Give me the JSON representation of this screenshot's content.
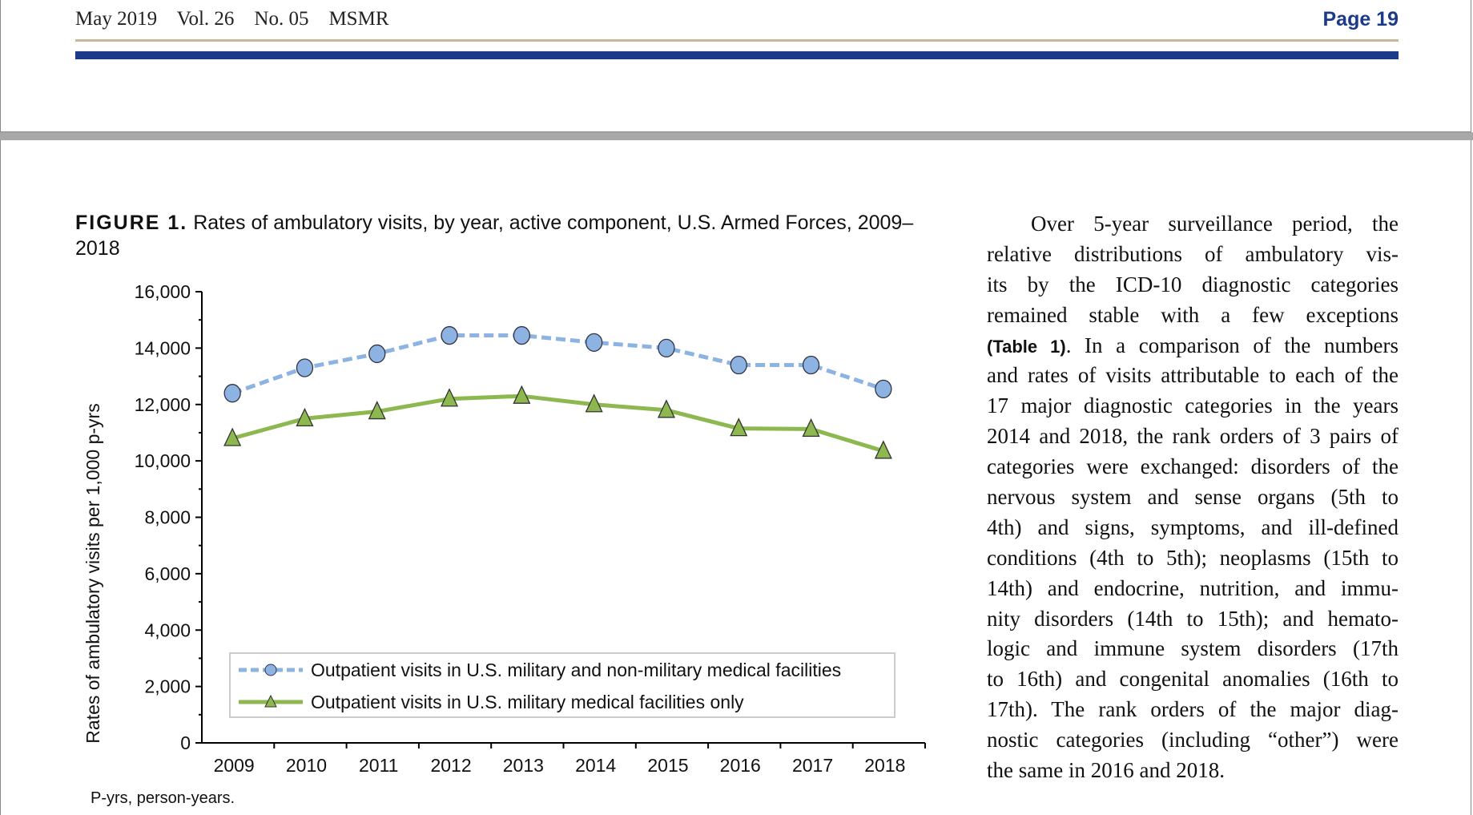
{
  "header": {
    "issue": "May 2019    Vol. 26    No. 05    MSMR",
    "page": "Page 19"
  },
  "figure": {
    "label": "FIGURE 1.",
    "title": " Rates of ambulatory visits, by year, active component, U.S. Armed Forces, 2009–2018",
    "footnote": "P-yrs, person-years."
  },
  "body_text": {
    "lines": [
      "Over 5-year surveillance period, the",
      "relative distributions of ambulatory vis-",
      "its by the ICD-10 diagnostic categories",
      "remained stable with a few exceptions",
      null,
      "and rates of visits attributable to each of the",
      "17 major diagnostic categories in the years",
      "2014 and 2018, the rank orders of 3 pairs of",
      "categories were exchanged: disorders of the",
      "nervous system and sense organs (5th to",
      "4th) and signs, symptoms, and ill-defined",
      "conditions (4th to 5th); neoplasms (15th to",
      "14th) and endocrine, nutrition, and immu-",
      "nity disorders (14th to 15th); and hemato-",
      "logic and immune system disorders (17th",
      "to 16th) and congenital anomalies (16th to",
      "17th). The rank orders of the major diag-",
      "nostic categories (including “other”) were",
      "the same in 2016 and 2018."
    ],
    "table_ref": "(Table 1)",
    "line5_rest": ". In a comparison of the numbers"
  },
  "chart_data": {
    "type": "line",
    "title": "Rates of ambulatory visits, by year, active component, U.S. Armed Forces, 2009–2018",
    "xlabel": "",
    "ylabel": "Rates of ambulatory visits per 1,000 p-yrs",
    "categories": [
      "2009",
      "2010",
      "2011",
      "2012",
      "2013",
      "2014",
      "2015",
      "2016",
      "2017",
      "2018"
    ],
    "ylim": [
      0,
      16000
    ],
    "yticks": [
      "0",
      "2,000",
      "4,000",
      "6,000",
      "8,000",
      "10,000",
      "12,000",
      "14,000",
      "16,000"
    ],
    "legend_position": "bottom-inside",
    "series": [
      {
        "name": "Outpatient visits in U.S. military and non-military medical facilities",
        "color": "#8db3e2",
        "marker": "circle",
        "style": "dashed",
        "values": [
          12400,
          13300,
          13800,
          14450,
          14450,
          14200,
          14000,
          13400,
          13400,
          12550
        ]
      },
      {
        "name": "Outpatient visits in U.S. military medical facilities only",
        "color": "#8cb84f",
        "marker": "triangle",
        "style": "solid",
        "values": [
          10800,
          11500,
          11750,
          12200,
          12300,
          12000,
          11800,
          11150,
          11130,
          10350
        ]
      }
    ]
  }
}
